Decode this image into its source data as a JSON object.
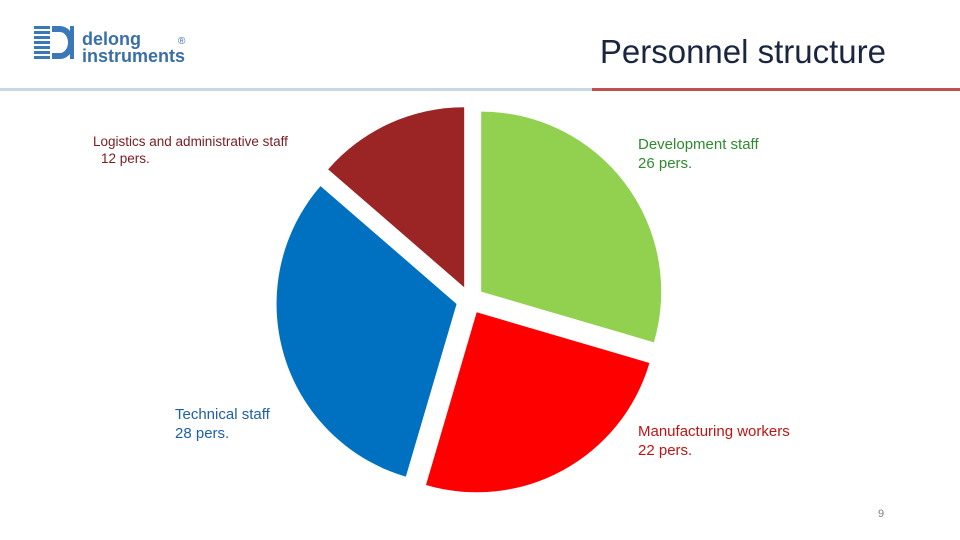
{
  "header": {
    "logo_text_line1": "delong",
    "logo_text_line2": "instruments",
    "logo_reg": "®",
    "title": "Personnel structure"
  },
  "chart_data": {
    "type": "pie",
    "title": "Personnel structure",
    "exploded": true,
    "slices": [
      {
        "name": "Development staff",
        "value": 26,
        "value_label": "26 pers.",
        "color": "#92d050"
      },
      {
        "name": "Manufacturing workers",
        "value": 22,
        "value_label": "22 pers.",
        "color": "#ff0000"
      },
      {
        "name": "Technical staff",
        "value": 28,
        "value_label": "28 pers.",
        "color": "#0070c0"
      },
      {
        "name": "Logistics and administrative staff",
        "value": 12,
        "value_label": "12 pers.",
        "color": "#9b2424"
      }
    ]
  },
  "footer": {
    "page_number": "9"
  }
}
